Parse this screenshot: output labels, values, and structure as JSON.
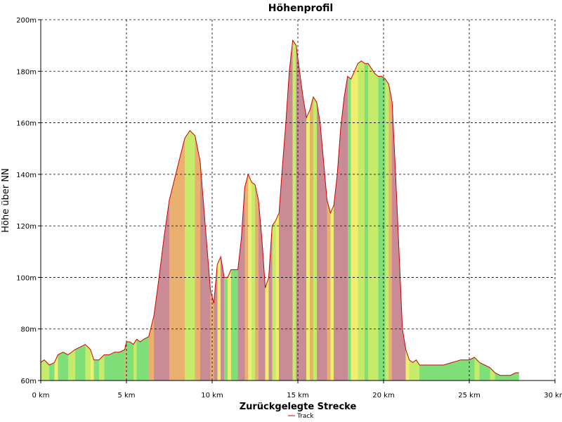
{
  "chart_data": {
    "type": "area",
    "title": "Höhenprofil",
    "xlabel": "Zurückgelegte Strecke",
    "ylabel": "Höhe über NN",
    "xlim": [
      0,
      30
    ],
    "ylim": [
      60,
      200
    ],
    "x_ticks": [
      0,
      5,
      10,
      15,
      20,
      25,
      30
    ],
    "x_tick_labels": [
      "0 km",
      "5 km",
      "10 km",
      "15 km",
      "20 km",
      "25 km",
      "30 km"
    ],
    "y_ticks": [
      60,
      80,
      100,
      120,
      140,
      160,
      180,
      200
    ],
    "y_tick_labels": [
      "60m",
      "80m",
      "100m",
      "120m",
      "140m",
      "160m",
      "180m",
      "200m"
    ],
    "grid": true,
    "legend_position": "bottom-center",
    "series": [
      {
        "name": "Track",
        "line_color": "#cc0000",
        "x": [
          0,
          0.2,
          0.5,
          0.8,
          1.0,
          1.3,
          1.6,
          2.0,
          2.3,
          2.6,
          2.9,
          3.1,
          3.4,
          3.7,
          4.0,
          4.3,
          4.6,
          4.9,
          5.0,
          5.2,
          5.4,
          5.6,
          5.8,
          6.0,
          6.3,
          6.6,
          6.9,
          7.2,
          7.5,
          7.8,
          8.1,
          8.4,
          8.7,
          9.0,
          9.3,
          9.6,
          9.9,
          10.1,
          10.3,
          10.5,
          10.7,
          10.9,
          11.1,
          11.3,
          11.5,
          11.7,
          11.9,
          12.1,
          12.3,
          12.5,
          12.7,
          12.9,
          13.1,
          13.3,
          13.5,
          13.7,
          13.9,
          14.1,
          14.3,
          14.5,
          14.7,
          14.9,
          15.1,
          15.3,
          15.5,
          15.7,
          15.9,
          16.1,
          16.3,
          16.5,
          16.7,
          16.9,
          17.1,
          17.3,
          17.5,
          17.7,
          17.9,
          18.1,
          18.3,
          18.5,
          18.7,
          18.9,
          19.1,
          19.3,
          19.5,
          19.7,
          19.9,
          20.1,
          20.3,
          20.5,
          20.7,
          20.9,
          21.1,
          21.3,
          21.5,
          21.7,
          21.9,
          22.1,
          22.3,
          22.5,
          22.7,
          23.0,
          23.5,
          24.0,
          24.5,
          25.0,
          25.3,
          25.6,
          25.9,
          26.2,
          26.5,
          26.8,
          27.1,
          27.4,
          27.7,
          27.9
        ],
        "y": [
          67,
          68,
          66,
          67,
          70,
          71,
          70,
          72,
          73,
          74,
          72,
          68,
          68,
          70,
          70,
          71,
          71,
          72,
          75,
          75,
          74,
          76,
          75,
          76,
          77,
          85,
          100,
          116,
          130,
          138,
          146,
          154,
          157,
          155,
          145,
          120,
          95,
          90,
          105,
          108,
          100,
          100,
          103,
          103,
          103,
          115,
          135,
          140,
          137,
          136,
          130,
          115,
          96,
          100,
          120,
          122,
          125,
          143,
          160,
          180,
          192,
          190,
          180,
          170,
          162,
          165,
          170,
          168,
          160,
          145,
          130,
          125,
          128,
          140,
          158,
          170,
          178,
          177,
          180,
          183,
          184,
          183,
          183,
          181,
          179,
          178,
          178,
          177,
          175,
          168,
          140,
          110,
          80,
          72,
          68,
          67,
          68,
          66,
          66,
          66,
          66,
          66,
          66,
          67,
          68,
          68,
          69,
          67,
          66,
          65,
          63,
          62,
          62,
          62,
          63,
          63
        ]
      }
    ]
  }
}
